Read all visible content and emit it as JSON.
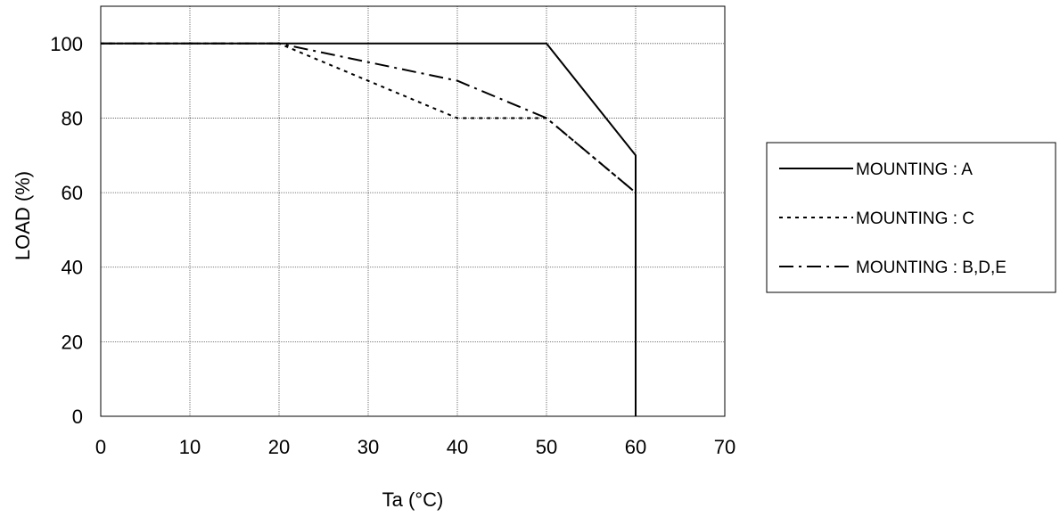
{
  "chart_data": {
    "type": "line",
    "title": "",
    "xlabel": "Ta (°C)",
    "ylabel": "LOAD (%)",
    "xlim": [
      0,
      70
    ],
    "ylim": [
      0,
      110
    ],
    "xticks": [
      0,
      10,
      20,
      30,
      40,
      50,
      60,
      70
    ],
    "yticks": [
      0,
      20,
      40,
      60,
      80,
      100
    ],
    "grid": true,
    "legend_position": "right",
    "series": [
      {
        "name": "MOUNTING : A",
        "line_style": "solid",
        "color": "#000000",
        "points": [
          [
            0,
            100
          ],
          [
            50,
            100
          ],
          [
            60,
            70
          ],
          [
            60,
            0
          ]
        ]
      },
      {
        "name": "MOUNTING : C",
        "line_style": "dotted",
        "color": "#000000",
        "points": [
          [
            0,
            100
          ],
          [
            20,
            100
          ],
          [
            40,
            80
          ],
          [
            50,
            80
          ],
          [
            60,
            60
          ],
          [
            60,
            0
          ]
        ]
      },
      {
        "name": "MOUNTING : B,D,E",
        "line_style": "dash-dot",
        "color": "#000000",
        "points": [
          [
            0,
            100
          ],
          [
            20,
            100
          ],
          [
            40,
            90
          ],
          [
            50,
            80
          ],
          [
            60,
            60
          ],
          [
            60,
            0
          ]
        ]
      }
    ]
  }
}
